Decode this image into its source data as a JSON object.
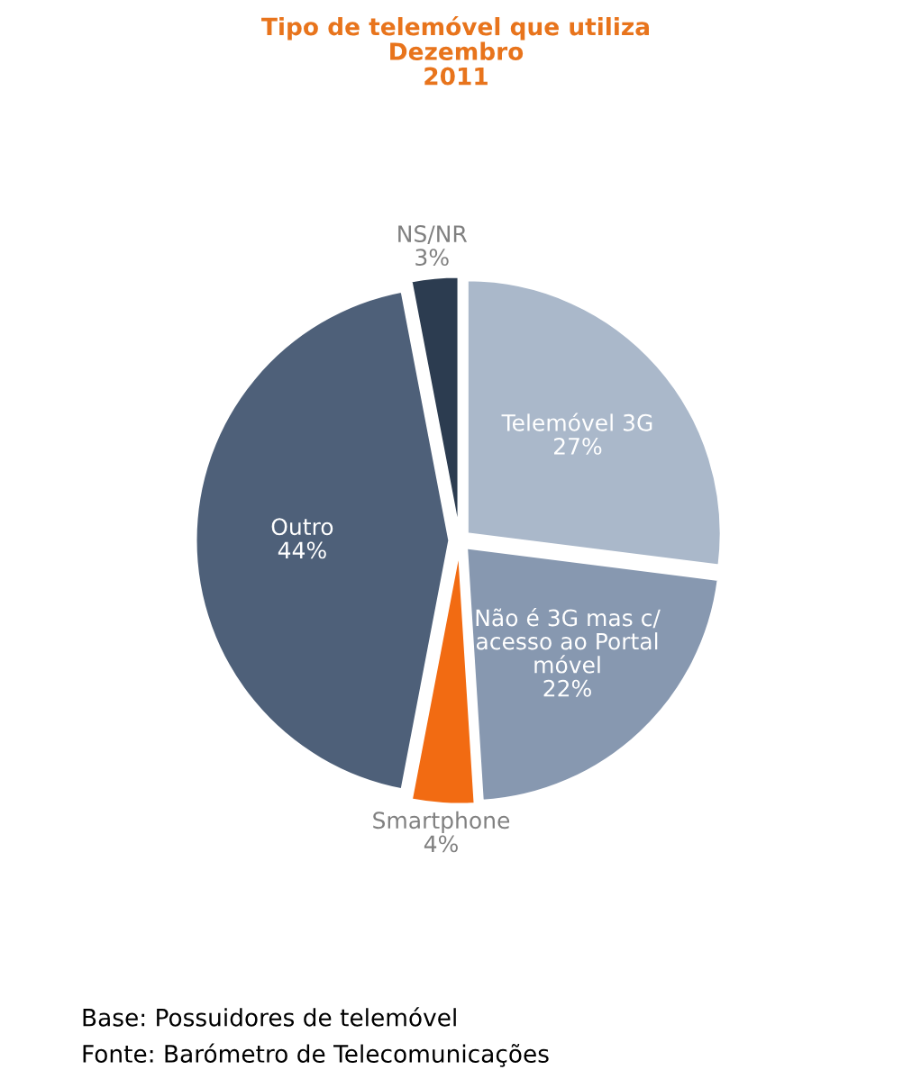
{
  "chart_data": {
    "type": "pie",
    "title": "Tipo de telemóvel que utiliza\nDezembro\n2011",
    "categories": [
      "Telemóvel 3G",
      "Não é 3G mas c/\nacesso ao Portal\nmóvel",
      "Smartphone",
      "Outro",
      "NS/NR"
    ],
    "values": [
      27,
      22,
      4,
      44,
      3
    ],
    "colors": [
      "#aab8ca",
      "#8798b0",
      "#f26b12",
      "#4e6079",
      "#2c3c50"
    ],
    "value_labels": [
      "27%",
      "22%",
      "4%",
      "44%",
      "3%"
    ],
    "legend": false,
    "annotations": [
      "Base: Possuidores de telemóvel",
      "Fonte: Barómetro de Telecomunicações"
    ]
  }
}
